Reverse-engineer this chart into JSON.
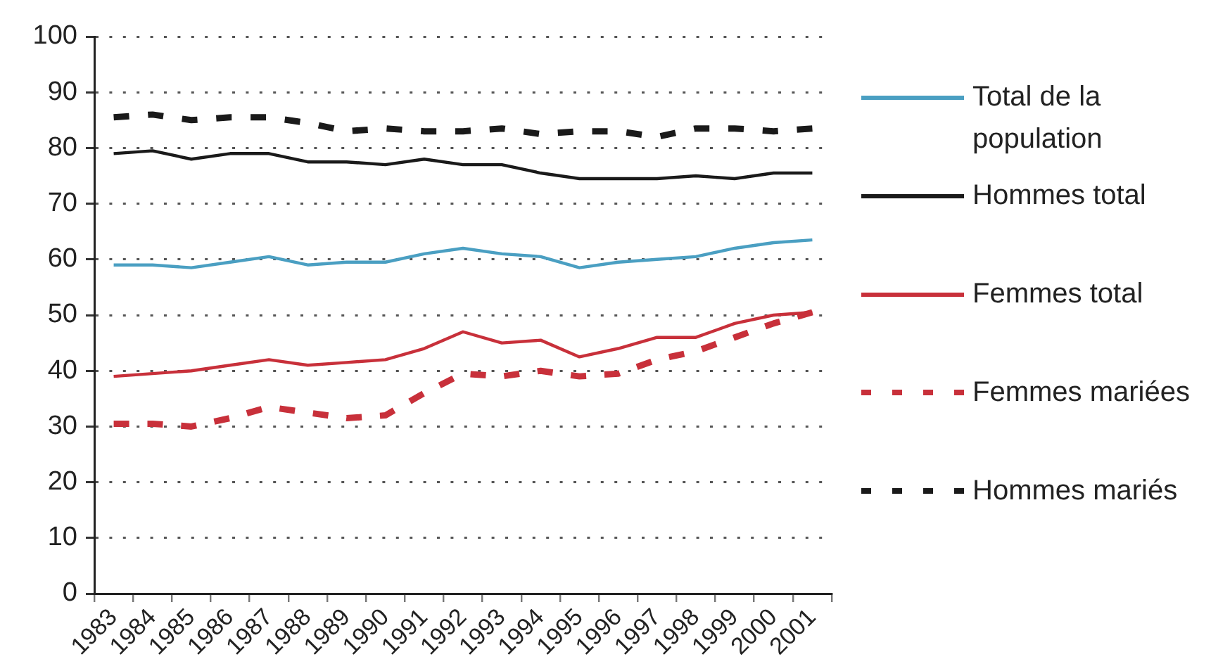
{
  "chart_data": {
    "type": "line",
    "categories": [
      "1983",
      "1984",
      "1985",
      "1986",
      "1987",
      "1988",
      "1989",
      "1990",
      "1991",
      "1992",
      "1993",
      "1994",
      "1995",
      "1996",
      "1997",
      "1998",
      "1999",
      "2000",
      "2001"
    ],
    "series": [
      {
        "name": "Total de la population",
        "color": "#4a9fc2",
        "line_style": "solid",
        "values": [
          59,
          59,
          58.5,
          59.5,
          60.5,
          59,
          59.5,
          59.5,
          61,
          62,
          61,
          60.5,
          58.5,
          59.5,
          60,
          60.5,
          62,
          63,
          63.5
        ]
      },
      {
        "name": "Hommes total",
        "color": "#1a1a1a",
        "line_style": "solid",
        "values": [
          79,
          79.5,
          78,
          79,
          79,
          77.5,
          77.5,
          77,
          78,
          77,
          77,
          75.5,
          74.5,
          74.5,
          74.5,
          75,
          74.5,
          75.5,
          75.5
        ]
      },
      {
        "name": "Femmes total",
        "color": "#c8303a",
        "line_style": "solid",
        "values": [
          39,
          39.5,
          40,
          41,
          42,
          41,
          41.5,
          42,
          44,
          47,
          45,
          45.5,
          42.5,
          44,
          46,
          46,
          48.5,
          50,
          50.5
        ]
      },
      {
        "name": "Femmes mariées",
        "color": "#c8303a",
        "line_style": "dashed",
        "values": [
          30.5,
          30.5,
          30,
          31.5,
          33.5,
          32.5,
          31.5,
          32,
          36,
          39.5,
          39,
          40,
          39,
          39.5,
          42,
          43.5,
          46,
          48.5,
          50.5
        ]
      },
      {
        "name": "Hommes mariés",
        "color": "#1a1a1a",
        "line_style": "dashed",
        "values": [
          85.5,
          86,
          85,
          85.5,
          85.5,
          84.5,
          83,
          83.5,
          83,
          83,
          83.5,
          82.5,
          83,
          83,
          82,
          83.5,
          83.5,
          83,
          83.5
        ]
      }
    ],
    "ylim": [
      0,
      100
    ],
    "yticks": [
      0,
      10,
      20,
      30,
      40,
      50,
      60,
      70,
      80,
      90,
      100
    ],
    "grid": "y",
    "legend": "right"
  }
}
